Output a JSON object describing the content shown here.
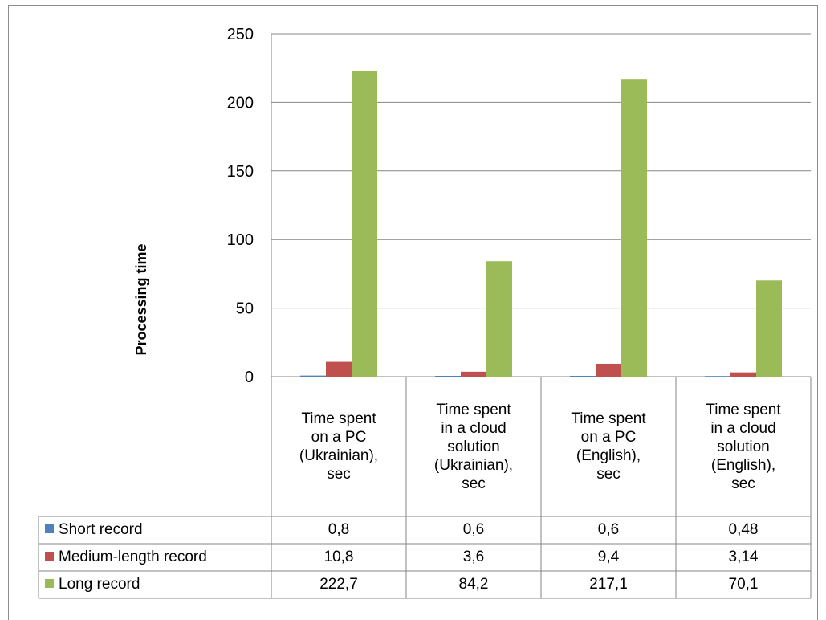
{
  "chart_data": {
    "type": "bar",
    "title": "",
    "ylabel": "Processing time",
    "xlabel": "",
    "ylim": [
      0,
      250
    ],
    "yticks": [
      0,
      50,
      100,
      150,
      200,
      250
    ],
    "grid": true,
    "legend": "data-table",
    "categories": [
      "Time spent on a PC (Ukrainian), sec",
      "Time spent in a cloud solution (Ukrainian), sec",
      "Time spent on a PC (English), sec",
      "Time spent in a cloud solution (English), sec"
    ],
    "category_labels": [
      "Time spent\non a PC\n(Ukrainian),\nsec",
      "Time spent\nin a cloud\nsolution\n(Ukrainian),\nsec",
      "Time spent\non a PC\n(English),\nsec",
      "Time spent\nin a cloud\nsolution\n(English),\nsec"
    ],
    "series": [
      {
        "name": "Short record",
        "color": "#4f81bd",
        "values": [
          0.8,
          0.6,
          0.6,
          0.48
        ],
        "labels": [
          "0,8",
          "0,6",
          "0,6",
          "0,48"
        ]
      },
      {
        "name": "Medium-length record",
        "color": "#c0504d",
        "values": [
          10.8,
          3.6,
          9.4,
          3.14
        ],
        "labels": [
          "10,8",
          "3,6",
          "9,4",
          "3,14"
        ]
      },
      {
        "name": "Long record",
        "color": "#9bbb59",
        "values": [
          222.7,
          84.2,
          217.1,
          70.1
        ],
        "labels": [
          "222,7",
          "84,2",
          "217,1",
          "70,1"
        ]
      }
    ]
  }
}
